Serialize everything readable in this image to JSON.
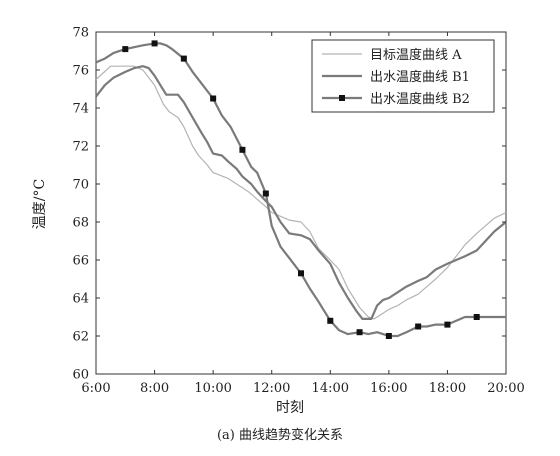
{
  "caption": "(a) 曲线趋势变化关系",
  "chart_data": {
    "type": "line",
    "xlabel": "时刻",
    "ylabel": "温度/°C",
    "xlim": [
      6,
      20
    ],
    "ylim": [
      60,
      78
    ],
    "xticks": [
      6,
      8,
      10,
      12,
      14,
      16,
      18,
      20
    ],
    "xtick_labels": [
      "6:00",
      "8:00",
      "10:00",
      "12:00",
      "14:00",
      "16:00",
      "18:00",
      "20:00"
    ],
    "yticks": [
      60,
      62,
      64,
      66,
      68,
      70,
      72,
      74,
      76,
      78
    ],
    "ytick_labels": [
      "60",
      "62",
      "64",
      "66",
      "68",
      "70",
      "72",
      "74",
      "76",
      "78"
    ],
    "grid": false,
    "legend_position": "top-right",
    "series": [
      {
        "name": "目标温度曲线 A",
        "color": "#b4b4b4",
        "marker": "none",
        "points": [
          [
            6,
            75.5
          ],
          [
            6.5,
            76.2
          ],
          [
            7,
            76.2
          ],
          [
            7.3,
            76.2
          ],
          [
            7.6,
            76.0
          ],
          [
            8,
            75.2
          ],
          [
            8.3,
            74.2
          ],
          [
            8.5,
            73.8
          ],
          [
            8.8,
            73.5
          ],
          [
            9,
            73.0
          ],
          [
            9.3,
            72.0
          ],
          [
            9.5,
            71.5
          ],
          [
            9.8,
            71.0
          ],
          [
            10,
            70.6
          ],
          [
            10.5,
            70.3
          ],
          [
            10.8,
            70.0
          ],
          [
            11,
            69.8
          ],
          [
            11.2,
            69.6
          ],
          [
            11.5,
            69.2
          ],
          [
            11.8,
            68.8
          ],
          [
            12,
            68.5
          ],
          [
            12.3,
            68.3
          ],
          [
            12.6,
            68.1
          ],
          [
            13,
            68.0
          ],
          [
            13.3,
            67.5
          ],
          [
            13.6,
            66.6
          ],
          [
            14,
            66.0
          ],
          [
            14.3,
            65.5
          ],
          [
            14.6,
            64.5
          ],
          [
            15,
            63.5
          ],
          [
            15.3,
            63.0
          ],
          [
            15.5,
            62.9
          ],
          [
            15.8,
            63.2
          ],
          [
            16,
            63.4
          ],
          [
            16.3,
            63.6
          ],
          [
            16.6,
            63.9
          ],
          [
            17,
            64.2
          ],
          [
            17.3,
            64.6
          ],
          [
            17.6,
            65.0
          ],
          [
            18,
            65.6
          ],
          [
            18.3,
            66.2
          ],
          [
            18.6,
            66.8
          ],
          [
            19,
            67.4
          ],
          [
            19.3,
            67.8
          ],
          [
            19.6,
            68.2
          ],
          [
            20,
            68.5
          ]
        ]
      },
      {
        "name": "出水温度曲线 B1",
        "color": "#7a7a7a",
        "marker": "none",
        "points": [
          [
            6,
            74.6
          ],
          [
            6.3,
            75.2
          ],
          [
            6.6,
            75.6
          ],
          [
            7,
            75.9
          ],
          [
            7.3,
            76.1
          ],
          [
            7.6,
            76.2
          ],
          [
            7.8,
            76.1
          ],
          [
            8,
            75.7
          ],
          [
            8.2,
            75.2
          ],
          [
            8.4,
            74.7
          ],
          [
            8.8,
            74.7
          ],
          [
            9,
            74.3
          ],
          [
            9.3,
            73.5
          ],
          [
            9.6,
            72.7
          ],
          [
            9.8,
            72.2
          ],
          [
            10,
            71.6
          ],
          [
            10.3,
            71.5
          ],
          [
            10.5,
            71.2
          ],
          [
            10.8,
            70.8
          ],
          [
            11,
            70.4
          ],
          [
            11.3,
            70.0
          ],
          [
            11.5,
            69.6
          ],
          [
            11.8,
            69.1
          ],
          [
            12,
            68.8
          ],
          [
            12.3,
            68.0
          ],
          [
            12.6,
            67.4
          ],
          [
            13,
            67.3
          ],
          [
            13.3,
            67.1
          ],
          [
            13.6,
            66.5
          ],
          [
            14,
            65.8
          ],
          [
            14.3,
            64.8
          ],
          [
            14.6,
            64.0
          ],
          [
            14.9,
            63.3
          ],
          [
            15.1,
            62.9
          ],
          [
            15.4,
            62.9
          ],
          [
            15.6,
            63.6
          ],
          [
            15.8,
            63.9
          ],
          [
            16,
            64.0
          ],
          [
            16.3,
            64.3
          ],
          [
            16.6,
            64.6
          ],
          [
            17,
            64.9
          ],
          [
            17.3,
            65.1
          ],
          [
            17.6,
            65.5
          ],
          [
            18,
            65.8
          ],
          [
            18.3,
            66.0
          ],
          [
            18.6,
            66.2
          ],
          [
            19,
            66.5
          ],
          [
            19.3,
            67.0
          ],
          [
            19.6,
            67.5
          ],
          [
            20,
            68.0
          ]
        ]
      },
      {
        "name": "出水温度曲线 B2",
        "color": "#7a7a7a",
        "marker": "square",
        "points": [
          [
            6,
            76.4
          ],
          [
            6.3,
            76.6
          ],
          [
            6.6,
            76.9
          ],
          [
            7,
            77.1
          ],
          [
            7.3,
            77.2
          ],
          [
            7.6,
            77.3
          ],
          [
            8,
            77.4
          ],
          [
            8.2,
            77.4
          ],
          [
            8.4,
            77.3
          ],
          [
            8.6,
            77.1
          ],
          [
            9,
            76.6
          ],
          [
            9.3,
            75.9
          ],
          [
            9.6,
            75.3
          ],
          [
            10,
            74.5
          ],
          [
            10.3,
            73.6
          ],
          [
            10.6,
            73.0
          ],
          [
            11,
            71.8
          ],
          [
            11.3,
            70.9
          ],
          [
            11.5,
            70.6
          ],
          [
            11.8,
            69.5
          ],
          [
            12,
            67.8
          ],
          [
            12.3,
            66.7
          ],
          [
            12.6,
            66.1
          ],
          [
            13,
            65.3
          ],
          [
            13.3,
            64.5
          ],
          [
            13.6,
            63.8
          ],
          [
            14,
            62.8
          ],
          [
            14.3,
            62.3
          ],
          [
            14.6,
            62.1
          ],
          [
            15,
            62.2
          ],
          [
            15.3,
            62.1
          ],
          [
            15.6,
            62.2
          ],
          [
            16,
            62.0
          ],
          [
            16.3,
            62.0
          ],
          [
            16.6,
            62.2
          ],
          [
            17,
            62.5
          ],
          [
            17.3,
            62.5
          ],
          [
            17.6,
            62.6
          ],
          [
            18,
            62.6
          ],
          [
            18.3,
            62.8
          ],
          [
            18.6,
            63.0
          ],
          [
            19,
            63.0
          ],
          [
            19.5,
            63.0
          ],
          [
            20,
            63.0
          ]
        ],
        "marker_points": [
          [
            7,
            77.1
          ],
          [
            8,
            77.4
          ],
          [
            9,
            76.6
          ],
          [
            10,
            74.5
          ],
          [
            11,
            71.8
          ],
          [
            11.8,
            69.5
          ],
          [
            13,
            65.3
          ],
          [
            14,
            62.8
          ],
          [
            15,
            62.2
          ],
          [
            16,
            62.0
          ],
          [
            17,
            62.5
          ],
          [
            18,
            62.6
          ],
          [
            19,
            63.0
          ]
        ]
      }
    ]
  }
}
